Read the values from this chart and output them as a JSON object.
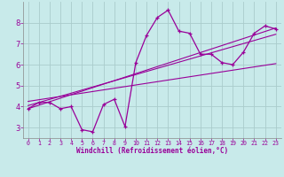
{
  "title": "",
  "xlabel": "Windchill (Refroidissement éolien,°C)",
  "bg_color": "#c8eaea",
  "line_color": "#990099",
  "grid_color": "#aacccc",
  "axis_color": "#888888",
  "x_data": [
    0,
    1,
    2,
    3,
    4,
    5,
    6,
    7,
    8,
    9,
    10,
    11,
    12,
    13,
    14,
    15,
    16,
    17,
    18,
    19,
    20,
    21,
    22,
    23
  ],
  "y_data": [
    3.9,
    4.2,
    4.2,
    3.9,
    4.0,
    2.9,
    2.8,
    4.1,
    4.35,
    3.05,
    6.1,
    7.4,
    8.25,
    8.6,
    7.6,
    7.5,
    6.5,
    6.5,
    6.1,
    6.0,
    6.6,
    7.5,
    7.85,
    7.7
  ],
  "ylim": [
    2.5,
    9.0
  ],
  "xlim": [
    -0.5,
    23.5
  ],
  "xticks": [
    0,
    1,
    2,
    3,
    4,
    5,
    6,
    7,
    8,
    9,
    10,
    11,
    12,
    13,
    14,
    15,
    16,
    17,
    18,
    19,
    20,
    21,
    22,
    23
  ],
  "yticks": [
    3,
    4,
    5,
    6,
    7,
    8
  ],
  "reg_lines": [
    {
      "x": [
        0,
        23
      ],
      "y": [
        3.9,
        7.75
      ]
    },
    {
      "x": [
        0,
        23
      ],
      "y": [
        4.05,
        7.45
      ]
    },
    {
      "x": [
        0,
        23
      ],
      "y": [
        4.25,
        6.05
      ]
    }
  ]
}
